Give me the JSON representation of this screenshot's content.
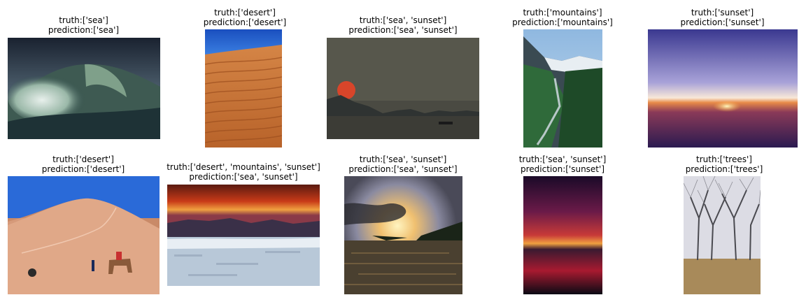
{
  "panels": [
    {
      "truth": "truth:['sea']",
      "prediction": "prediction:['sea']",
      "image": "sea-wave-photo"
    },
    {
      "truth": "truth:['desert']",
      "prediction": "prediction:['desert']",
      "image": "desert-dunes-photo"
    },
    {
      "truth": "truth:['sea', 'sunset']",
      "prediction": "prediction:['sea', 'sunset']",
      "image": "sea-sunset-photo"
    },
    {
      "truth": "truth:['mountains']",
      "prediction": "prediction:['mountains']",
      "image": "mountains-photo"
    },
    {
      "truth": "truth:['sunset']",
      "prediction": "prediction:['sunset']",
      "image": "sunset-horizon-photo"
    },
    {
      "truth": "truth:['desert']",
      "prediction": "prediction:['desert']",
      "image": "desert-camel-photo"
    },
    {
      "truth": "truth:['desert', 'mountains', 'sunset']",
      "prediction": "prediction:['sea', 'sunset']",
      "image": "red-sky-snowfield-photo"
    },
    {
      "truth": "truth:['sea', 'sunset']",
      "prediction": "prediction:['sea', 'sunset']",
      "image": "sun-rays-sea-photo"
    },
    {
      "truth": "truth:['sea', 'sunset']",
      "prediction": "prediction:['sunset']",
      "image": "dark-red-sunset-photo"
    },
    {
      "truth": "truth:['trees']",
      "prediction": "prediction:['trees']",
      "image": "bare-trees-photo"
    }
  ]
}
